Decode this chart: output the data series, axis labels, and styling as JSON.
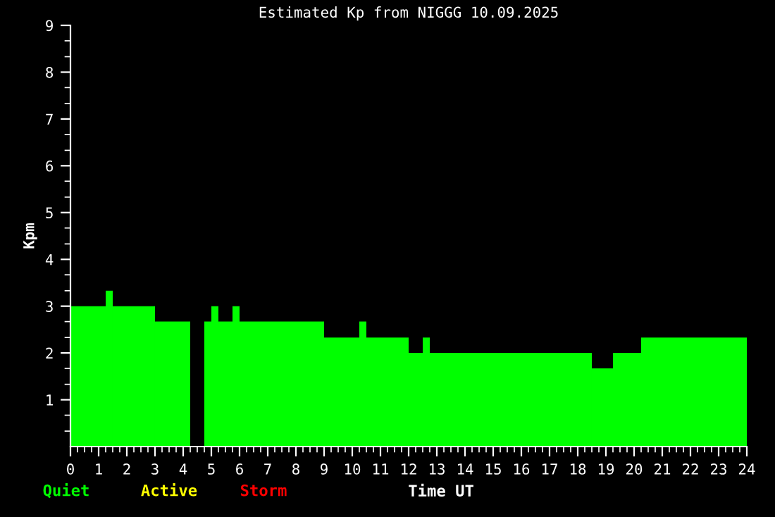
{
  "chart_data": {
    "type": "bar",
    "title": "Estimated Kp from NIGGG 10.09.2025",
    "xlabel": "Time UT",
    "ylabel": "Kpm",
    "x": [
      0.625,
      1.375,
      2.25,
      3.625,
      4.5,
      4.875,
      5.125,
      5.5,
      5.875,
      7.5,
      9.625,
      10.375,
      11.25,
      12.25,
      12.625,
      15.625,
      18.875,
      19.75,
      22.125
    ],
    "series": [
      {
        "name": "Quiet",
        "color": "#00ff00",
        "values": [
          3,
          3.33,
          3,
          2.67,
          null,
          2.67,
          3,
          2.67,
          3,
          2.67,
          2.33,
          2.67,
          2.33,
          2,
          2.33,
          2,
          1.67,
          2,
          2.33
        ]
      },
      {
        "name": "Active",
        "color": "#ffff00",
        "values": [
          null,
          null,
          null,
          null,
          null,
          null,
          null,
          null,
          null,
          null,
          null,
          null,
          null,
          null,
          null,
          null,
          null,
          null,
          null
        ]
      },
      {
        "name": "Storm",
        "color": "#ff0000",
        "values": [
          null,
          null,
          null,
          null,
          null,
          null,
          null,
          null,
          null,
          null,
          null,
          null,
          null,
          null,
          null,
          null,
          null,
          null,
          null
        ]
      }
    ],
    "xlim": [
      0,
      24
    ],
    "xticks": [
      0,
      {
        "value": 0.25,
        "label": null
      },
      {
        "value": 0.5,
        "label": null
      },
      {
        "value": 0.75,
        "label": null
      },
      1,
      {
        "value": 1.25,
        "label": null
      },
      {
        "value": 1.5,
        "label": null
      },
      {
        "value": 1.75,
        "label": null
      },
      2,
      {
        "value": 2.25,
        "label": null
      },
      {
        "value": 2.5,
        "label": null
      },
      {
        "value": 2.75,
        "label": null
      },
      3,
      {
        "value": 3.25,
        "label": null
      },
      {
        "value": 3.5,
        "label": null
      },
      {
        "value": 3.75,
        "label": null
      },
      4,
      {
        "value": 4.25,
        "label": null
      },
      {
        "value": 4.5,
        "label": null
      },
      {
        "value": 4.75,
        "label": null
      },
      5,
      {
        "value": 5.25,
        "label": null
      },
      {
        "value": 5.5,
        "label": null
      },
      {
        "value": 5.75,
        "label": null
      },
      6,
      {
        "value": 6.25,
        "label": null
      },
      {
        "value": 6.5,
        "label": null
      },
      {
        "value": 6.75,
        "label": null
      },
      7,
      {
        "value": 7.25,
        "label": null
      },
      {
        "value": 7.5,
        "label": null
      },
      {
        "value": 7.75,
        "label": null
      },
      8,
      {
        "value": 8.25,
        "label": null
      },
      {
        "value": 8.5,
        "label": null
      },
      {
        "value": 8.75,
        "label": null
      },
      9,
      {
        "value": 9.25,
        "label": null
      },
      {
        "value": 9.5,
        "label": null
      },
      {
        "value": 9.75,
        "label": null
      },
      10,
      {
        "value": 10.25,
        "label": null
      },
      {
        "value": 10.5,
        "label": null
      },
      {
        "value": 10.75,
        "label": null
      },
      11,
      {
        "value": 11.25,
        "label": null
      },
      {
        "value": 11.5,
        "label": null
      },
      {
        "value": 11.75,
        "label": null
      },
      12,
      {
        "value": 12.25,
        "label": null
      },
      {
        "value": 12.5,
        "label": null
      },
      {
        "value": 12.75,
        "label": null
      },
      13,
      {
        "value": 13.25,
        "label": null
      },
      {
        "value": 13.5,
        "label": null
      },
      {
        "value": 13.75,
        "label": null
      },
      14,
      {
        "value": 14.25,
        "label": null
      },
      {
        "value": 14.5,
        "label": null
      },
      {
        "value": 14.75,
        "label": null
      },
      15,
      {
        "value": 15.25,
        "label": null
      },
      {
        "value": 15.5,
        "label": null
      },
      {
        "value": 15.75,
        "label": null
      },
      16,
      {
        "value": 16.25,
        "label": null
      },
      {
        "value": 16.5,
        "label": null
      },
      {
        "value": 16.75,
        "label": null
      },
      17,
      {
        "value": 17.25,
        "label": null
      },
      {
        "value": 17.5,
        "label": null
      },
      {
        "value": 17.75,
        "label": null
      },
      18,
      {
        "value": 18.25,
        "label": null
      },
      {
        "value": 18.5,
        "label": null
      },
      {
        "value": 18.75,
        "label": null
      },
      19,
      {
        "value": 19.25,
        "label": null
      },
      {
        "value": 19.5,
        "label": null
      },
      {
        "value": 19.75,
        "label": null
      },
      20,
      {
        "value": 20.25,
        "label": null
      },
      {
        "value": 20.5,
        "label": null
      },
      {
        "value": 20.75,
        "label": null
      },
      21,
      {
        "value": 21.25,
        "label": null
      },
      {
        "value": 21.5,
        "label": null
      },
      {
        "value": 21.75,
        "label": null
      },
      22,
      {
        "value": 22.25,
        "label": null
      },
      {
        "value": 22.5,
        "label": null
      },
      {
        "value": 22.75,
        "label": null
      },
      23,
      {
        "value": 23.25,
        "label": null
      },
      {
        "value": 23.5,
        "label": null
      },
      {
        "value": 23.75,
        "label": null
      },
      24
    ],
    "ylim": [
      0,
      9
    ],
    "yticks": [
      {
        "value": 0.33,
        "label": null
      },
      {
        "value": 0.67,
        "label": null
      },
      1,
      {
        "value": 1.33,
        "label": null
      },
      {
        "value": 1.67,
        "label": null
      },
      2,
      {
        "value": 2.33,
        "label": null
      },
      {
        "value": 2.67,
        "label": null
      },
      3,
      {
        "value": 3.33,
        "label": null
      },
      {
        "value": 3.67,
        "label": null
      },
      4,
      {
        "value": 4.33,
        "label": null
      },
      {
        "value": 4.67,
        "label": null
      },
      5,
      {
        "value": 5.33,
        "label": null
      },
      {
        "value": 5.67,
        "label": null
      },
      6,
      {
        "value": 6.33,
        "label": null
      },
      {
        "value": 6.67,
        "label": null
      },
      7,
      {
        "value": 7.33,
        "label": null
      },
      {
        "value": 7.67,
        "label": null
      },
      8,
      {
        "value": 8.33,
        "label": null
      },
      {
        "value": 8.67,
        "label": null
      },
      9
    ],
    "legend": "bottom left"
  }
}
